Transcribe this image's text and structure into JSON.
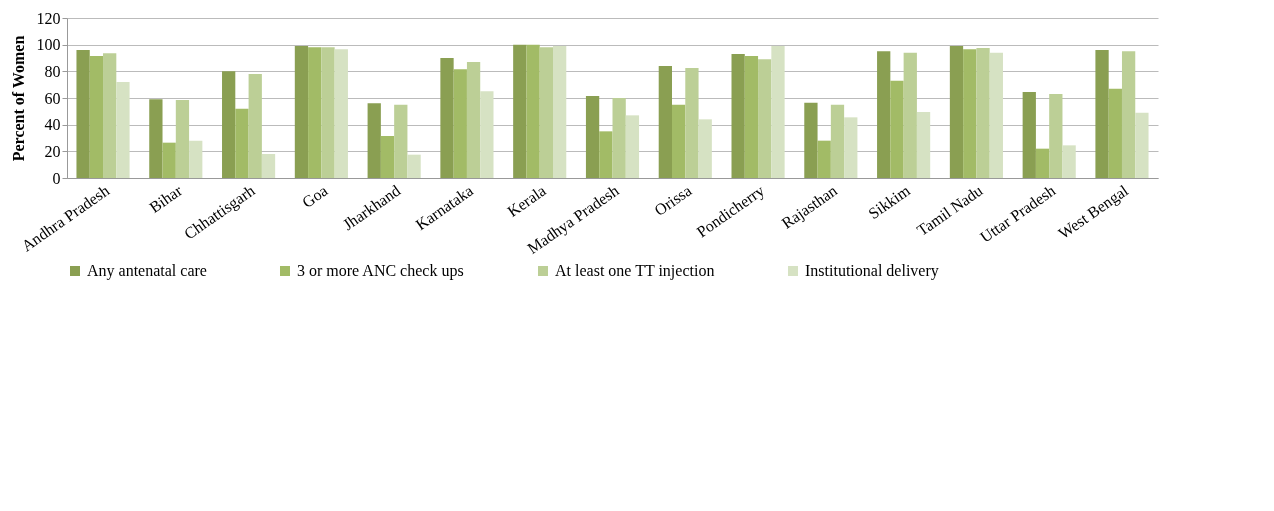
{
  "chart_data": {
    "type": "bar",
    "ylabel": "Percent of Women",
    "categories": [
      "Andhra Pradesh",
      "Bihar",
      "Chhattisgarh",
      "Goa",
      "Jharkhand",
      "Karnataka",
      "Kerala",
      "Madhya Pradesh",
      "Orissa",
      "Pondicherry",
      "Rajasthan",
      "Sikkim",
      "Tamil Nadu",
      "Uttar Pradesh",
      "West Bengal"
    ],
    "series": [
      {
        "name": "Any antenatal care",
        "color": "#8a9f52",
        "values": [
          96,
          59,
          80,
          99,
          56,
          90,
          100,
          61.5,
          84,
          93,
          56.5,
          95,
          99,
          64.5,
          96
        ]
      },
      {
        "name": "3 or more ANC check ups",
        "color": "#a2bb66",
        "values": [
          91.5,
          26.5,
          52,
          98,
          31.5,
          81.5,
          100,
          35,
          55,
          91.5,
          28,
          73,
          96.5,
          22,
          67
        ]
      },
      {
        "name": "At least one TT injection",
        "color": "#bccf96",
        "values": [
          93.5,
          58.5,
          78,
          98,
          55,
          87,
          98,
          60,
          82.5,
          89,
          55,
          94,
          97.5,
          63,
          95
        ]
      },
      {
        "name": "Institutional delivery",
        "color": "#d6e2c3",
        "values": [
          72,
          28,
          18,
          96.5,
          17.5,
          65,
          99,
          47,
          44,
          99,
          45.5,
          49.5,
          94,
          24.5,
          49
        ]
      }
    ],
    "ylim": [
      0,
      120
    ],
    "yticks": [
      0,
      20,
      40,
      60,
      80,
      100,
      120
    ],
    "grid": "y",
    "legend": "bottom"
  }
}
